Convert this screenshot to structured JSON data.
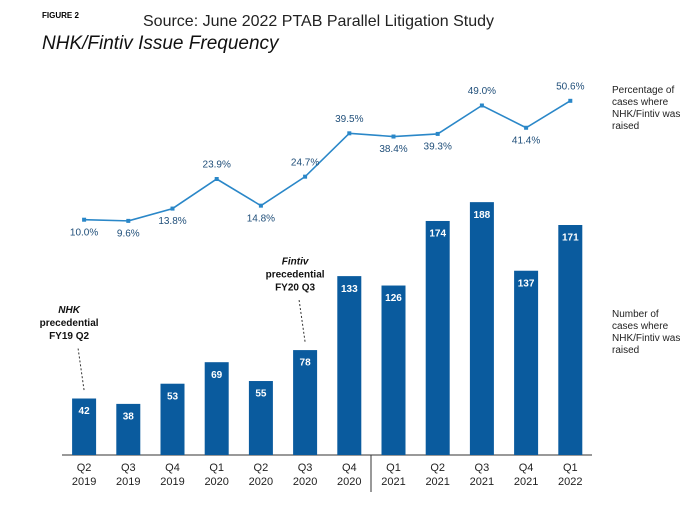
{
  "chart_data": {
    "type": "bar_line",
    "figure_label": "FIGURE 2",
    "subtitle": "Source:  June 2022 PTAB Parallel Litigation Study",
    "title": "NHK/Fintiv Issue Frequency",
    "categories": [
      "Q2\n2019",
      "Q3\n2019",
      "Q4\n2019",
      "Q1\n2020",
      "Q2\n2020",
      "Q3\n2020",
      "Q4\n2020",
      "Q1\n2021",
      "Q2\n2021",
      "Q3\n2021",
      "Q4\n2021",
      "Q1\n2022"
    ],
    "ylim": [
      0,
      200
    ],
    "y2lim": [
      0,
      70
    ],
    "series": [
      {
        "name": "Number of cases where NHK/Fintiv was raised",
        "type": "bar",
        "color": "#0a5b9e",
        "values": [
          42,
          38,
          53,
          69,
          55,
          78,
          133,
          126,
          174,
          188,
          137,
          171
        ]
      },
      {
        "name": "Percentage of cases where NHK/Fintiv was raised",
        "type": "line",
        "axis": "y2",
        "color": "#2a87c8",
        "values": [
          10.0,
          9.6,
          13.8,
          23.9,
          14.8,
          24.7,
          39.5,
          38.4,
          39.3,
          49.0,
          41.4,
          50.6
        ],
        "value_labels": [
          "10.0%",
          "9.6%",
          "13.8%",
          "23.9%",
          "14.8%",
          "24.7%",
          "39.5%",
          "38.4%",
          "39.3%",
          "49.0%",
          "41.4%",
          "50.6%"
        ]
      }
    ],
    "annotations": [
      {
        "category": 0,
        "lines": [
          "NHK",
          "precedential",
          "FY19 Q2"
        ]
      },
      {
        "category": 5,
        "lines": [
          "Fintiv",
          "precedential",
          "FY20 Q3"
        ]
      }
    ]
  }
}
